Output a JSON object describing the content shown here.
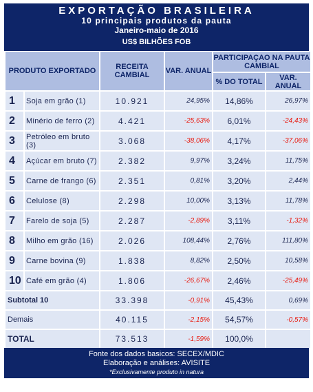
{
  "header": {
    "title": "EXPORTAÇÃO BRASILEIRA",
    "subtitle": "10 principais produtos da pauta",
    "period": "Janeiro-maio  de 2016",
    "unit": "US$ BILHÕES FOB"
  },
  "columns": {
    "product": "PRODUTO EXPORTADO",
    "revenue": "RECEITA CAMBIAL",
    "var_annual": "VAR. ANUAL",
    "share_group": "PARTICIPAÇAO NA PAUTA CAMBIAL",
    "share_pct": "% DO TOTAL",
    "share_var": "VAR. ANUAL"
  },
  "rows": [
    {
      "rank": "1",
      "name": "Soja em grão (1)",
      "revenue": "10.921",
      "var": "24,95%",
      "pct": "14,86%",
      "pct_var": "26,97%"
    },
    {
      "rank": "2",
      "name": "Minério de ferro (2)",
      "revenue": "4.421",
      "var": "-25,63%",
      "pct": "6,01%",
      "pct_var": "-24,43%"
    },
    {
      "rank": "3",
      "name": "Petróleo em bruto (3)",
      "revenue": "3.068",
      "var": "-38,06%",
      "pct": "4,17%",
      "pct_var": "-37,06%"
    },
    {
      "rank": "4",
      "name": "Açúcar em bruto (7)",
      "revenue": "2.382",
      "var": "9,97%",
      "pct": "3,24%",
      "pct_var": "11,75%"
    },
    {
      "rank": "5",
      "name": "Carne de frango (6)",
      "revenue": "2.351",
      "var": "0,81%",
      "pct": "3,20%",
      "pct_var": "2,44%"
    },
    {
      "rank": "6",
      "name": "Celulose (8)",
      "revenue": "2.298",
      "var": "10,00%",
      "pct": "3,13%",
      "pct_var": "11,78%"
    },
    {
      "rank": "7",
      "name": "Farelo de soja (5)",
      "revenue": "2.287",
      "var": "-2,89%",
      "pct": "3,11%",
      "pct_var": "-1,32%"
    },
    {
      "rank": "8",
      "name": "Milho em grão (16)",
      "revenue": "2.026",
      "var": "108,44%",
      "pct": "2,76%",
      "pct_var": "111,80%"
    },
    {
      "rank": "9",
      "name": "Carne bovina (9)",
      "revenue": "1.838",
      "var": "8,82%",
      "pct": "2,50%",
      "pct_var": "10,58%"
    },
    {
      "rank": "10",
      "name": "Café em grão (4)",
      "revenue": "1.806",
      "var": "-26,67%",
      "pct": "2,46%",
      "pct_var": "-25,49%"
    }
  ],
  "subtotal": {
    "label": "Subtotal 10",
    "revenue": "33.398",
    "var": "-0,91%",
    "pct": "45,43%",
    "pct_var": "0,69%"
  },
  "others": {
    "label": "Demais",
    "revenue": "40.115",
    "var": "-2,15%",
    "pct": "54,57%",
    "pct_var": "-0,57%"
  },
  "total": {
    "label": "TOTAL",
    "revenue": "73.513",
    "var": "-1,59%",
    "pct": "100,0%",
    "pct_var": ""
  },
  "footer": {
    "source": "Fonte dos dados basicos: SECEX/MDIC",
    "analysis": "Elaboração e análises: AVISITE",
    "note": "*Exclusivamente  produto  in natura"
  },
  "colors": {
    "navy": "#0e2568",
    "header_cell": "#aebde1",
    "cell": "#dfe6f4",
    "negative": "#e8190f"
  }
}
